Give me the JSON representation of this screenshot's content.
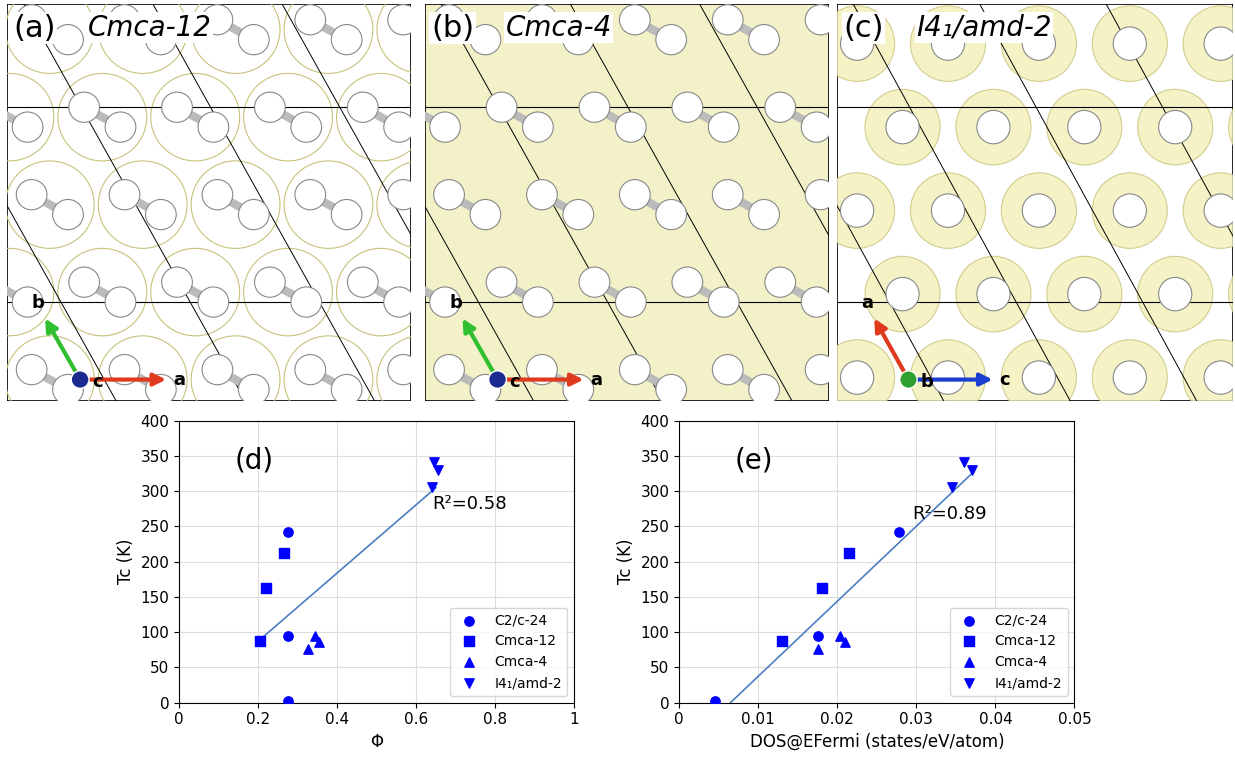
{
  "panels": [
    {
      "label": "(a)",
      "title": "Cmca-12",
      "axes": [
        "a",
        "b",
        "c"
      ]
    },
    {
      "label": "(b)",
      "title": "Cmca-4",
      "axes": [
        "a",
        "b",
        "c"
      ]
    },
    {
      "label": "(c)",
      "title": "I4₁/amd-2",
      "axes": [
        "c",
        "a",
        "b"
      ]
    }
  ],
  "chart_data": [
    {
      "type": "scatter",
      "label": "(d)",
      "xlabel": "Φ",
      "ylabel": "Tc (K)",
      "xlim": [
        0,
        1
      ],
      "xticks": [
        0,
        0.2,
        0.4,
        0.6,
        0.8,
        1
      ],
      "ylim": [
        0,
        400
      ],
      "yticks": [
        0,
        50,
        100,
        150,
        200,
        250,
        300,
        350,
        400
      ],
      "grid": true,
      "legend": "lower right",
      "series": [
        {
          "name": "C2/c-24",
          "color": "#0000ff",
          "marker": "o",
          "x": [
            0.275,
            0.275,
            0.275
          ],
          "values": [
            242,
            95,
            2
          ]
        },
        {
          "name": "Cmca-12",
          "color": "#0000ff",
          "marker": "s",
          "x": [
            0.205,
            0.22,
            0.265
          ],
          "values": [
            87,
            162,
            212
          ]
        },
        {
          "name": "Cmca-4",
          "color": "#0000ff",
          "marker": "^",
          "x": [
            0.325,
            0.345,
            0.355
          ],
          "values": [
            76,
            95,
            86
          ]
        },
        {
          "name": "I4₁/amd-2",
          "color": "#0000ff",
          "marker": "v",
          "x": [
            0.645,
            0.655,
            0.64
          ],
          "values": [
            342,
            330,
            306
          ]
        }
      ],
      "fit_line": {
        "x": [
          0.2,
          0.65
        ],
        "values": [
          87,
          305
        ]
      },
      "annotation": {
        "text": "R²=0.58",
        "x": 0.64,
        "y": 282
      }
    },
    {
      "type": "scatter",
      "label": "(e)",
      "xlabel": "DOS@EFermi (states/eV/atom)",
      "ylabel": "Tc (K)",
      "xlim": [
        0,
        0.05
      ],
      "xticks": [
        0,
        0.01,
        0.02,
        0.03,
        0.04,
        0.05
      ],
      "ylim": [
        0,
        400
      ],
      "yticks": [
        0,
        50,
        100,
        150,
        200,
        250,
        300,
        350,
        400
      ],
      "grid": true,
      "legend": "lower right",
      "series": [
        {
          "name": "C2/c-24",
          "color": "#0000ff",
          "marker": "o",
          "x": [
            0.0045,
            0.0175,
            0.0278
          ],
          "values": [
            2,
            95,
            242
          ]
        },
        {
          "name": "Cmca-12",
          "color": "#0000ff",
          "marker": "s",
          "x": [
            0.013,
            0.018,
            0.0215
          ],
          "values": [
            87,
            162,
            212
          ]
        },
        {
          "name": "Cmca-4",
          "color": "#0000ff",
          "marker": "^",
          "x": [
            0.0175,
            0.0203,
            0.021
          ],
          "values": [
            76,
            95,
            86
          ]
        },
        {
          "name": "I4₁/amd-2",
          "color": "#0000ff",
          "marker": "v",
          "x": [
            0.0345,
            0.036,
            0.037
          ],
          "values": [
            306,
            342,
            330
          ]
        }
      ],
      "fit_line": {
        "x": [
          0.0065,
          0.0372
        ],
        "values": [
          0,
          327
        ]
      },
      "annotation": {
        "text": "R²=0.89",
        "x": 0.0295,
        "y": 268
      }
    }
  ]
}
